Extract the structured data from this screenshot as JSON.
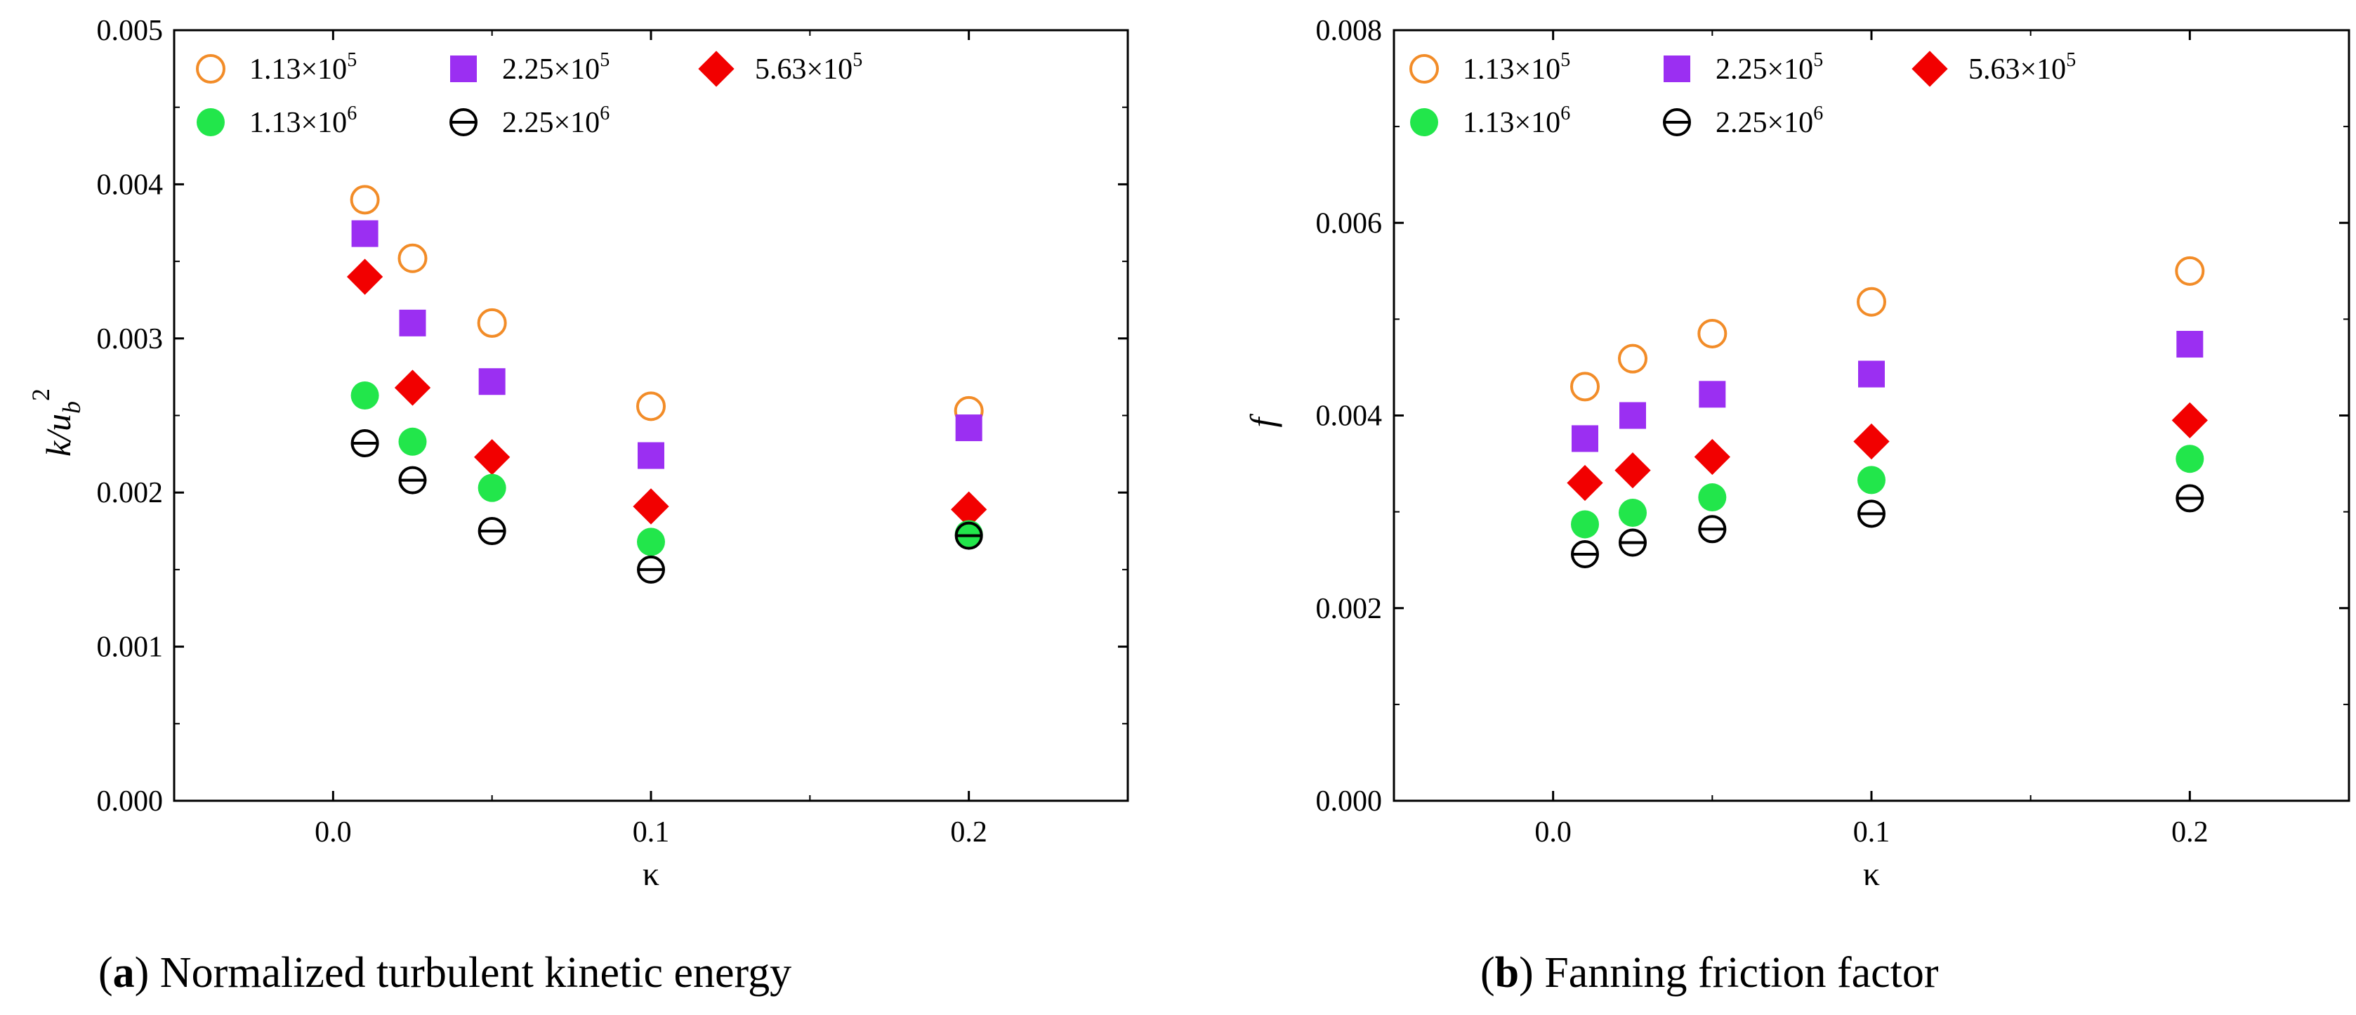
{
  "colors": {
    "s113e5": "#F28C28",
    "s225e5": "#9B2FF2",
    "s563e5": "#F20000",
    "s113e6": "#22E64B",
    "s225e6": "#000000"
  },
  "legend_labels": {
    "s113e5": {
      "mant": "1.13×10",
      "exp": "5"
    },
    "s225e5": {
      "mant": "2.25×10",
      "exp": "5"
    },
    "s563e5": {
      "mant": "5.63×10",
      "exp": "5"
    },
    "s113e6": {
      "mant": "1.13×10",
      "exp": "6"
    },
    "s225e6": {
      "mant": "2.25×10",
      "exp": "6"
    }
  },
  "chart_data": [
    {
      "type": "scatter",
      "caption": {
        "prefix": "(",
        "letter": "a",
        "text": ") Normalized turbulent kinetic energy"
      },
      "xlabel": "κ",
      "ylabel": {
        "base": "k/u",
        "sub": "b",
        "sup": "2"
      },
      "xlim": [
        -0.05,
        0.25
      ],
      "ylim": [
        0,
        0.005
      ],
      "xticks": [
        "0.0",
        "0.1",
        "0.2"
      ],
      "yticks": [
        "0.000",
        "0.001",
        "0.002",
        "0.003",
        "0.004",
        "0.005"
      ],
      "x": [
        0.01,
        0.025,
        0.05,
        0.1,
        0.2
      ],
      "series": [
        {
          "key": "s113e5",
          "marker": "circle-open",
          "values": [
            0.0039,
            0.00352,
            0.0031,
            0.00256,
            0.00253
          ]
        },
        {
          "key": "s225e5",
          "marker": "square",
          "values": [
            0.00368,
            0.0031,
            0.00272,
            0.00224,
            0.00242
          ]
        },
        {
          "key": "s563e5",
          "marker": "diamond",
          "values": [
            0.0034,
            0.00268,
            0.00223,
            0.00191,
            0.00189
          ]
        },
        {
          "key": "s113e6",
          "marker": "circle",
          "values": [
            0.00263,
            0.00233,
            0.00203,
            0.00168,
            0.00173
          ]
        },
        {
          "key": "s225e6",
          "marker": "circle-bar",
          "values": [
            0.00232,
            0.00208,
            0.00175,
            0.0015,
            0.00172
          ]
        }
      ]
    },
    {
      "type": "scatter",
      "caption": {
        "prefix": "(",
        "letter": "b",
        "text": ") Fanning friction factor"
      },
      "xlabel": "κ",
      "ylabel": {
        "base": "f",
        "sub": "",
        "sup": ""
      },
      "xlim": [
        -0.05,
        0.25
      ],
      "ylim": [
        0,
        0.008
      ],
      "xticks": [
        "0.0",
        "0.1",
        "0.2"
      ],
      "yticks": [
        "0.000",
        "0.002",
        "0.004",
        "0.006",
        "0.008"
      ],
      "x": [
        0.01,
        0.025,
        0.05,
        0.1,
        0.2
      ],
      "series": [
        {
          "key": "s113e5",
          "marker": "circle-open",
          "values": [
            0.0043,
            0.00459,
            0.00485,
            0.00518,
            0.0055
          ]
        },
        {
          "key": "s225e5",
          "marker": "square",
          "values": [
            0.00376,
            0.004,
            0.00422,
            0.00443,
            0.00474
          ]
        },
        {
          "key": "s563e5",
          "marker": "diamond",
          "values": [
            0.0033,
            0.00343,
            0.00357,
            0.00373,
            0.00395
          ]
        },
        {
          "key": "s113e6",
          "marker": "circle",
          "values": [
            0.00287,
            0.00299,
            0.00315,
            0.00333,
            0.00355
          ]
        },
        {
          "key": "s225e6",
          "marker": "circle-bar",
          "values": [
            0.00256,
            0.00268,
            0.00282,
            0.00298,
            0.00314
          ]
        }
      ]
    }
  ]
}
